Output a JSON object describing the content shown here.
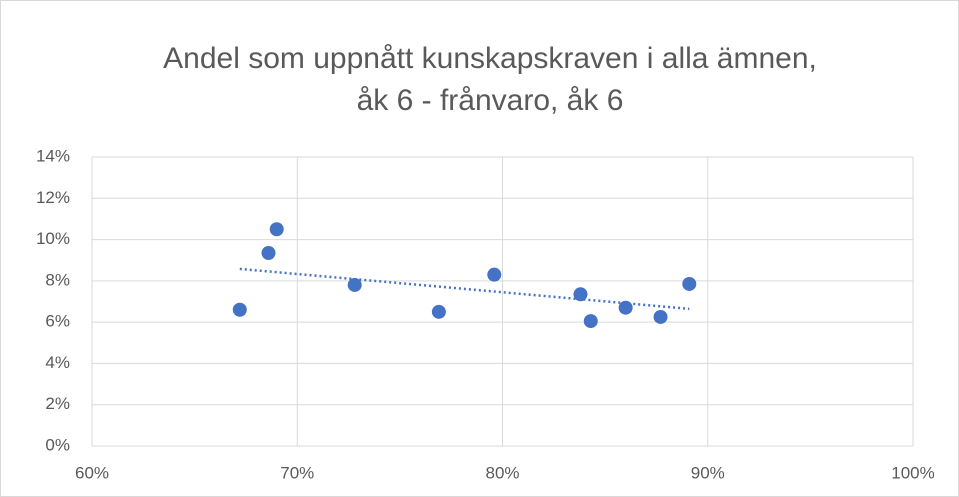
{
  "chart_data": {
    "type": "scatter",
    "title": [
      "Andel som uppnått kunskapskraven i alla ämnen,",
      "åk 6 - frånvaro, åk 6"
    ],
    "series": [
      {
        "color": "#4472c4",
        "x": [
          67.2,
          68.6,
          69.0,
          72.8,
          76.9,
          79.6,
          83.8,
          84.3,
          86.0,
          87.7,
          89.1
        ],
        "values": [
          6.6,
          9.35,
          10.5,
          7.8,
          6.5,
          8.3,
          7.35,
          6.05,
          6.7,
          6.25,
          7.85
        ]
      }
    ],
    "trendline": "linear",
    "xlim": [
      60,
      100
    ],
    "xticks": [
      {
        "value": 60,
        "label": "60%"
      },
      {
        "value": 70,
        "label": "70%"
      },
      {
        "value": 80,
        "label": "80%"
      },
      {
        "value": 90,
        "label": "90%"
      },
      {
        "value": 100,
        "label": "100%"
      }
    ],
    "ylim": [
      0,
      14
    ],
    "yticks": [
      {
        "value": 0,
        "label": "0%"
      },
      {
        "value": 2,
        "label": "2%"
      },
      {
        "value": 4,
        "label": "4%"
      },
      {
        "value": 6,
        "label": "6%"
      },
      {
        "value": 8,
        "label": "8%"
      },
      {
        "value": 10,
        "label": "10%"
      },
      {
        "value": 12,
        "label": "12%"
      },
      {
        "value": 14,
        "label": "14%"
      }
    ],
    "grid": true
  }
}
